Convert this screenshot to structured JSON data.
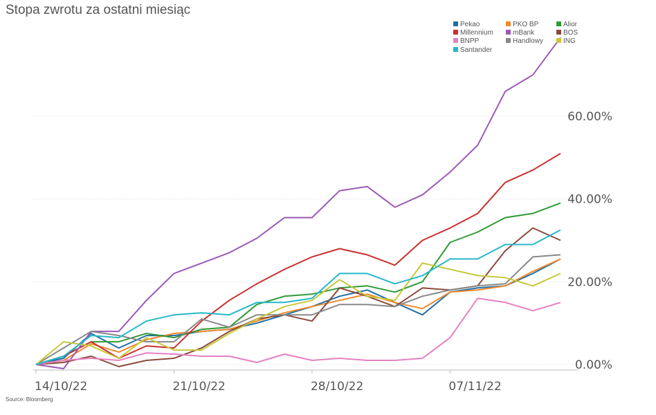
{
  "title": "Stopa zwrotu za ostatni miesiąc",
  "source": "Source: Bloomberg",
  "chart_data": {
    "type": "line",
    "title": "Stopa zwrotu za ostatni miesiąc",
    "xlabel": "",
    "ylabel": "",
    "ylim": [
      -1.5,
      80
    ],
    "yticks": [
      0,
      20,
      40,
      60
    ],
    "ytick_labels": [
      "0.00%",
      "20.00%",
      "40.00%",
      "60.00%"
    ],
    "x": [
      "14/10/22",
      "17/10/22",
      "18/10/22",
      "19/10/22",
      "20/10/22",
      "21/10/22",
      "24/10/22",
      "25/10/22",
      "26/10/22",
      "27/10/22",
      "28/10/22",
      "31/10/22",
      "02/11/22",
      "03/11/22",
      "04/11/22",
      "07/11/22",
      "08/11/22",
      "09/11/22",
      "10/11/22",
      "11/11/22"
    ],
    "xticks": [
      "14/10/22",
      "21/10/22",
      "28/10/22",
      "07/11/22"
    ],
    "xtick_labels": [
      "14/10/22",
      "21/10/22",
      "28/10/22",
      "07/11/22"
    ],
    "grid": "horizontal",
    "legend_position": "top-right",
    "series": [
      {
        "name": "Pekao",
        "color": "#1f6fa8",
        "values": [
          0,
          1.5,
          7.5,
          4.0,
          7.0,
          7.0,
          8.0,
          8.5,
          10.0,
          12.0,
          14.0,
          16.5,
          18.0,
          15.0,
          12.0,
          17.5,
          18.5,
          19.0,
          22.0,
          25.5
        ]
      },
      {
        "name": "PKO BP",
        "color": "#f0882a",
        "values": [
          0,
          1.0,
          5.0,
          3.0,
          6.0,
          7.5,
          8.0,
          8.5,
          10.5,
          12.5,
          14.0,
          15.5,
          17.0,
          15.0,
          13.5,
          17.5,
          18.0,
          19.0,
          22.5,
          25.5
        ]
      },
      {
        "name": "Alior",
        "color": "#2e9a36",
        "values": [
          0,
          2.0,
          5.5,
          5.5,
          7.5,
          6.5,
          8.5,
          9.0,
          14.5,
          16.5,
          17.0,
          18.5,
          19.0,
          17.5,
          20.0,
          29.5,
          32.0,
          35.5,
          36.5,
          39.0
        ]
      },
      {
        "name": "Millennium",
        "color": "#c9302c",
        "values": [
          0,
          2.0,
          5.5,
          1.5,
          4.5,
          4.0,
          10.5,
          15.5,
          19.5,
          23.0,
          26.0,
          28.0,
          26.5,
          24.0,
          30.0,
          33.0,
          36.5,
          44.0,
          47.0,
          51.0
        ]
      },
      {
        "name": "mBank",
        "color": "#9b59b6",
        "values": [
          0,
          -1.0,
          8.0,
          8.0,
          15.5,
          22.0,
          24.5,
          27.0,
          30.5,
          35.5,
          35.5,
          42.0,
          43.0,
          38.0,
          41.0,
          46.5,
          53.0,
          66.0,
          70.0,
          79.0
        ]
      },
      {
        "name": "BOS",
        "color": "#8b4a3c",
        "values": [
          0,
          0.5,
          2.0,
          -0.5,
          1.0,
          1.5,
          4.0,
          8.0,
          11.0,
          12.0,
          10.5,
          18.5,
          16.5,
          14.0,
          18.5,
          18.0,
          19.0,
          27.5,
          33.0,
          30.0
        ]
      },
      {
        "name": "BNPP",
        "color": "#e580c2",
        "values": [
          0,
          1.0,
          1.5,
          1.0,
          2.8,
          2.5,
          2.0,
          2.0,
          0.5,
          2.5,
          1.0,
          1.5,
          1.0,
          1.0,
          1.5,
          6.5,
          16.0,
          15.0,
          13.0,
          15.0
        ]
      },
      {
        "name": "Handlowy",
        "color": "#888888",
        "values": [
          0,
          4.0,
          8.0,
          7.0,
          5.5,
          5.5,
          11.0,
          9.0,
          12.0,
          12.0,
          12.0,
          14.5,
          14.5,
          14.0,
          16.5,
          18.0,
          19.0,
          19.5,
          26.0,
          26.5
        ]
      },
      {
        "name": "ING",
        "color": "#c8c83a",
        "values": [
          0,
          5.5,
          4.5,
          1.5,
          6.5,
          3.5,
          3.5,
          7.5,
          11.0,
          14.0,
          15.5,
          20.5,
          16.5,
          15.5,
          24.5,
          23.0,
          21.5,
          21.0,
          19.0,
          22.0
        ]
      },
      {
        "name": "Santander",
        "color": "#25b8c8",
        "values": [
          0,
          2.0,
          7.0,
          6.5,
          10.5,
          12.0,
          12.5,
          12.0,
          15.0,
          15.0,
          16.0,
          22.0,
          22.0,
          19.5,
          21.5,
          25.5,
          25.5,
          29.0,
          29.0,
          32.5
        ]
      }
    ],
    "legend_layout": [
      [
        "Pekao",
        "PKO BP",
        "Alior"
      ],
      [
        "Millennium",
        "mBank",
        "BOS"
      ],
      [
        "BNPP",
        "Handlowy",
        "ING"
      ],
      [
        "Santander"
      ]
    ]
  }
}
